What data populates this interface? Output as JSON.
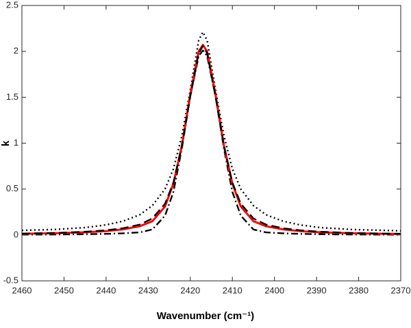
{
  "chart_data": {
    "type": "line",
    "xlabel": "Wavenumber (cm⁻¹)",
    "ylabel": "k",
    "x": [
      2460,
      2452,
      2445,
      2440,
      2436,
      2432,
      2429,
      2426,
      2424,
      2422,
      2420,
      2418,
      2417,
      2416,
      2414,
      2412,
      2410,
      2408,
      2405,
      2402,
      2398,
      2394,
      2389,
      2382,
      2374,
      2370
    ],
    "series": [
      {
        "color": "#000000",
        "dash": "dotted",
        "values": [
          0.05,
          0.06,
          0.08,
          0.11,
          0.15,
          0.22,
          0.32,
          0.5,
          0.72,
          1.08,
          1.58,
          2.12,
          2.21,
          2.12,
          1.58,
          1.08,
          0.72,
          0.5,
          0.32,
          0.22,
          0.15,
          0.11,
          0.08,
          0.06,
          0.05,
          0.045
        ]
      },
      {
        "color": "#000000",
        "dash": "dashdot",
        "values": [
          0.004,
          0.005,
          0.008,
          0.012,
          0.018,
          0.028,
          0.06,
          0.21,
          0.47,
          0.94,
          1.51,
          1.95,
          2.01,
          1.95,
          1.51,
          0.94,
          0.47,
          0.21,
          0.06,
          0.028,
          0.018,
          0.012,
          0.008,
          0.005,
          0.004,
          0.003
        ]
      },
      {
        "color": "#ff0000",
        "dash": "solid",
        "values": [
          0.013,
          0.019,
          0.029,
          0.042,
          0.061,
          0.095,
          0.15,
          0.31,
          0.56,
          0.97,
          1.53,
          2.0,
          2.07,
          2.0,
          1.53,
          0.97,
          0.56,
          0.31,
          0.15,
          0.095,
          0.061,
          0.042,
          0.029,
          0.019,
          0.013,
          0.01
        ]
      },
      {
        "color": "#000000",
        "dash": "dashed",
        "values": [
          0.015,
          0.022,
          0.035,
          0.051,
          0.073,
          0.113,
          0.18,
          0.34,
          0.57,
          0.97,
          1.51,
          1.98,
          2.06,
          1.98,
          1.51,
          0.97,
          0.57,
          0.34,
          0.18,
          0.113,
          0.073,
          0.051,
          0.035,
          0.022,
          0.015,
          0.013
        ]
      }
    ],
    "xlim": [
      2460,
      2370
    ],
    "xticks": [
      2460,
      2450,
      2440,
      2430,
      2420,
      2410,
      2400,
      2390,
      2380,
      2370
    ],
    "ylim": [
      -0.5,
      2.5
    ],
    "yticks": [
      -0.5,
      0,
      0.5,
      1,
      1.5,
      2,
      2.5
    ],
    "grid": false
  }
}
